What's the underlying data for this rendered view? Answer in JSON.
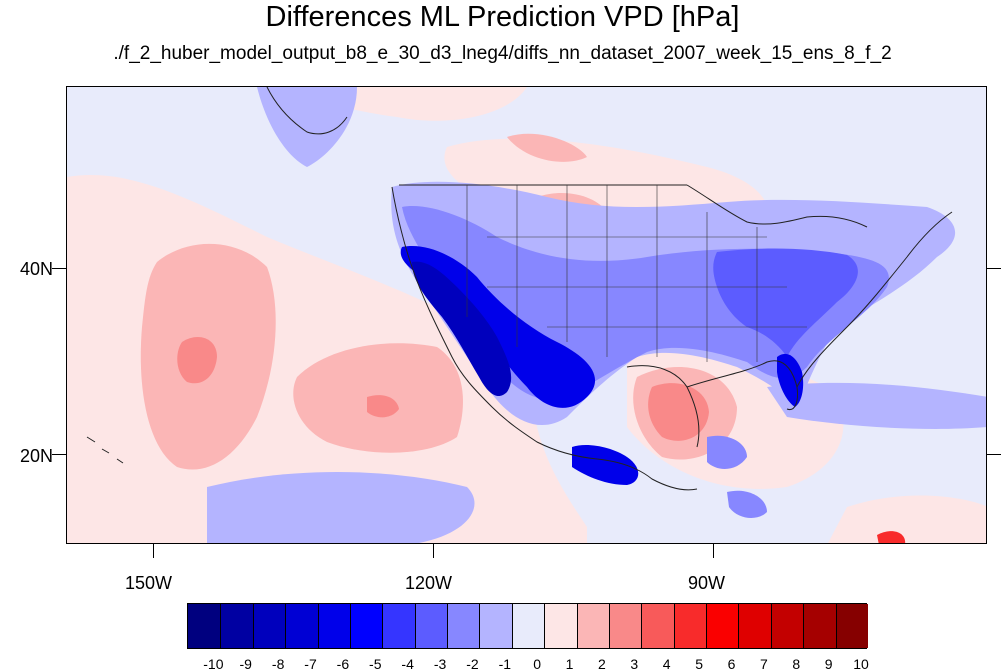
{
  "title": "Differences ML Prediction VPD [hPa]",
  "subtitle": "./f_2_huber_model_output_b8_e_30_d3_lneg4/diffs_nn_dataset_2007_week_15_ens_8_f_2",
  "lat_labels": [
    "40N",
    "20N"
  ],
  "lon_labels": [
    "150W",
    "120W",
    "90W"
  ],
  "colorbar": {
    "labels": [
      "-10",
      "-9",
      "-8",
      "-7",
      "-6",
      "-5",
      "-4",
      "-3",
      "-2",
      "-1",
      "0",
      "1",
      "2",
      "3",
      "4",
      "5",
      "6",
      "7",
      "8",
      "9",
      "10"
    ],
    "colors": [
      "#00007f",
      "#0000a2",
      "#0000bd",
      "#0000d4",
      "#0000ea",
      "#0000ff",
      "#3535ff",
      "#5c5cff",
      "#8787ff",
      "#b4b4ff",
      "#e8ebfb",
      "#fde6e6",
      "#fbb6b6",
      "#f98989",
      "#f85a5a",
      "#f82b2b",
      "#fa0000",
      "#df0000",
      "#c30000",
      "#a50000",
      "#860000"
    ]
  },
  "map_colors": {
    "background": "#e8ebfb",
    "light_red": "#fde6e6",
    "pink": "#fbb6b6",
    "red_medium": "#f98989",
    "red_strong": "#f82b2b",
    "blue_light": "#b4b4ff",
    "blue_medium": "#8787ff",
    "blue_strong": "#5c5cff",
    "blue_deep": "#0000ea",
    "blue_darkest": "#0000bd"
  }
}
